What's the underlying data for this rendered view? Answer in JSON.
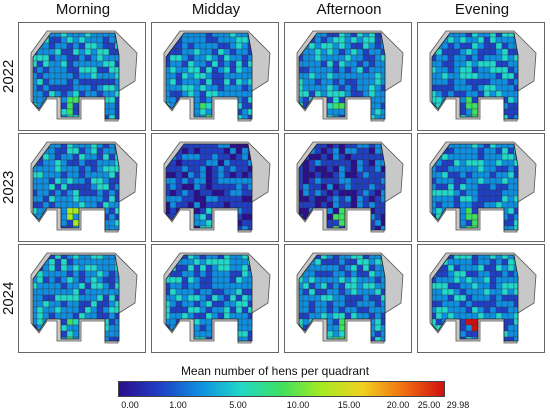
{
  "chart_data": {
    "type": "heatmap",
    "columns": [
      "Morning",
      "Midday",
      "Afternoon",
      "Evening"
    ],
    "rows": [
      "2022",
      "2023",
      "2024"
    ],
    "colorbar": {
      "title": "Mean number of hens per quadrant",
      "min": 0.0,
      "max": 29.98,
      "ticks": [
        0.0,
        1.0,
        5.0,
        10.0,
        15.0,
        20.0,
        25.0,
        29.98
      ],
      "tick_labels": [
        "0.00",
        "1.00",
        "5.00",
        "10.00",
        "15.00",
        "20.00",
        "25.00",
        "29.98"
      ],
      "colors": [
        "#2b0f8c",
        "#1f3fc4",
        "#0f8fe0",
        "#22d8c8",
        "#3ee060",
        "#a6ea20",
        "#f0d020",
        "#f07010",
        "#d01010"
      ]
    },
    "panels": [
      {
        "row": "2022",
        "col": "Morning",
        "low": "#1f3fc4",
        "mid": "#0f8fe0",
        "high": "#22d8c8",
        "peak": "#3ee060"
      },
      {
        "row": "2022",
        "col": "Midday",
        "low": "#1f3fc4",
        "mid": "#0f8fe0",
        "high": "#22d8c8",
        "peak": "#3ee060"
      },
      {
        "row": "2022",
        "col": "Afternoon",
        "low": "#1f3fc4",
        "mid": "#0f8fe0",
        "high": "#22d8c8",
        "peak": "#3ee060"
      },
      {
        "row": "2022",
        "col": "Evening",
        "low": "#1f3fc4",
        "mid": "#0f8fe0",
        "high": "#22d8c8",
        "peak": "#3ee060"
      },
      {
        "row": "2023",
        "col": "Morning",
        "low": "#1f3fc4",
        "mid": "#0f8fe0",
        "high": "#22d8c8",
        "peak": "#a6ea20"
      },
      {
        "row": "2023",
        "col": "Midday",
        "low": "#2b0f8c",
        "mid": "#1f3fc4",
        "high": "#0f8fe0",
        "peak": "#22d8c8"
      },
      {
        "row": "2023",
        "col": "Afternoon",
        "low": "#2b0f8c",
        "mid": "#1f3fc4",
        "high": "#0f8fe0",
        "peak": "#3ee060"
      },
      {
        "row": "2023",
        "col": "Evening",
        "low": "#1f3fc4",
        "mid": "#0f8fe0",
        "high": "#22d8c8",
        "peak": "#3ee060"
      },
      {
        "row": "2024",
        "col": "Morning",
        "low": "#1f3fc4",
        "mid": "#0f8fe0",
        "high": "#22d8c8",
        "peak": "#3ee060"
      },
      {
        "row": "2024",
        "col": "Midday",
        "low": "#1f3fc4",
        "mid": "#0f8fe0",
        "high": "#22d8c8",
        "peak": "#22d8c8"
      },
      {
        "row": "2024",
        "col": "Afternoon",
        "low": "#1f3fc4",
        "mid": "#0f8fe0",
        "high": "#22d8c8",
        "peak": "#3ee060"
      },
      {
        "row": "2024",
        "col": "Evening",
        "low": "#1f3fc4",
        "mid": "#0f8fe0",
        "high": "#22d8c8",
        "peak": "#d01010"
      }
    ]
  }
}
